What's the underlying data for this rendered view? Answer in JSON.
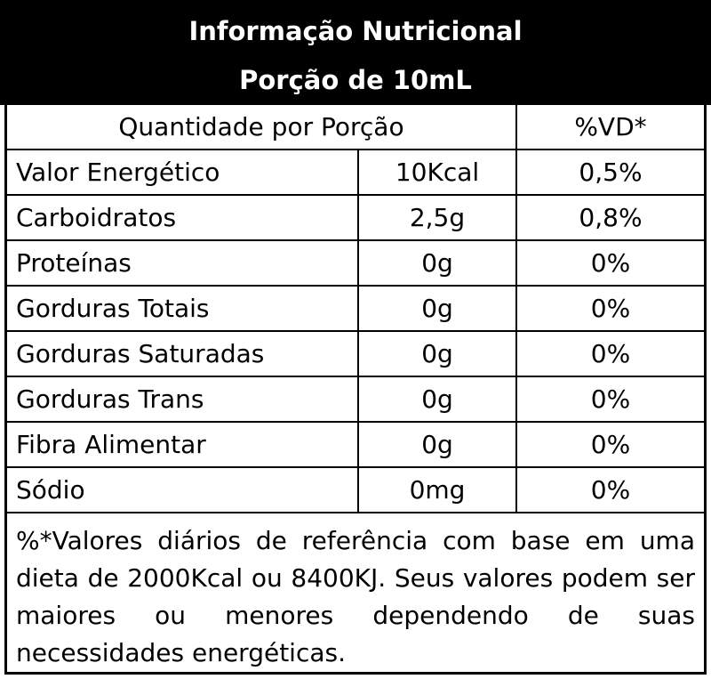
{
  "header": {
    "title": "Informação Nutricional",
    "serving": "Porção de 10mL"
  },
  "table": {
    "col_quantity_header": "Quantidade por Porção",
    "col_vd_header": "%VD*",
    "rows": [
      {
        "name": "Valor Energético",
        "qty": "10Kcal",
        "vd": "0,5%"
      },
      {
        "name": "Carboidratos",
        "qty": "2,5g",
        "vd": "0,8%"
      },
      {
        "name": "Proteínas",
        "qty": "0g",
        "vd": "0%"
      },
      {
        "name": "Gorduras Totais",
        "qty": "0g",
        "vd": "0%"
      },
      {
        "name": "Gorduras Saturadas",
        "qty": "0g",
        "vd": "0%"
      },
      {
        "name": "Gorduras Trans",
        "qty": "0g",
        "vd": "0%"
      },
      {
        "name": "Fibra Alimentar",
        "qty": "0g",
        "vd": "0%"
      },
      {
        "name": "Sódio",
        "qty": "0mg",
        "vd": "0%"
      }
    ]
  },
  "footnote": "%*Valores diários de referência com base em uma dieta de 2000Kcal ou 8400KJ. Seus valores podem ser maiores ou menores dependendo de suas necessidades energéticas."
}
